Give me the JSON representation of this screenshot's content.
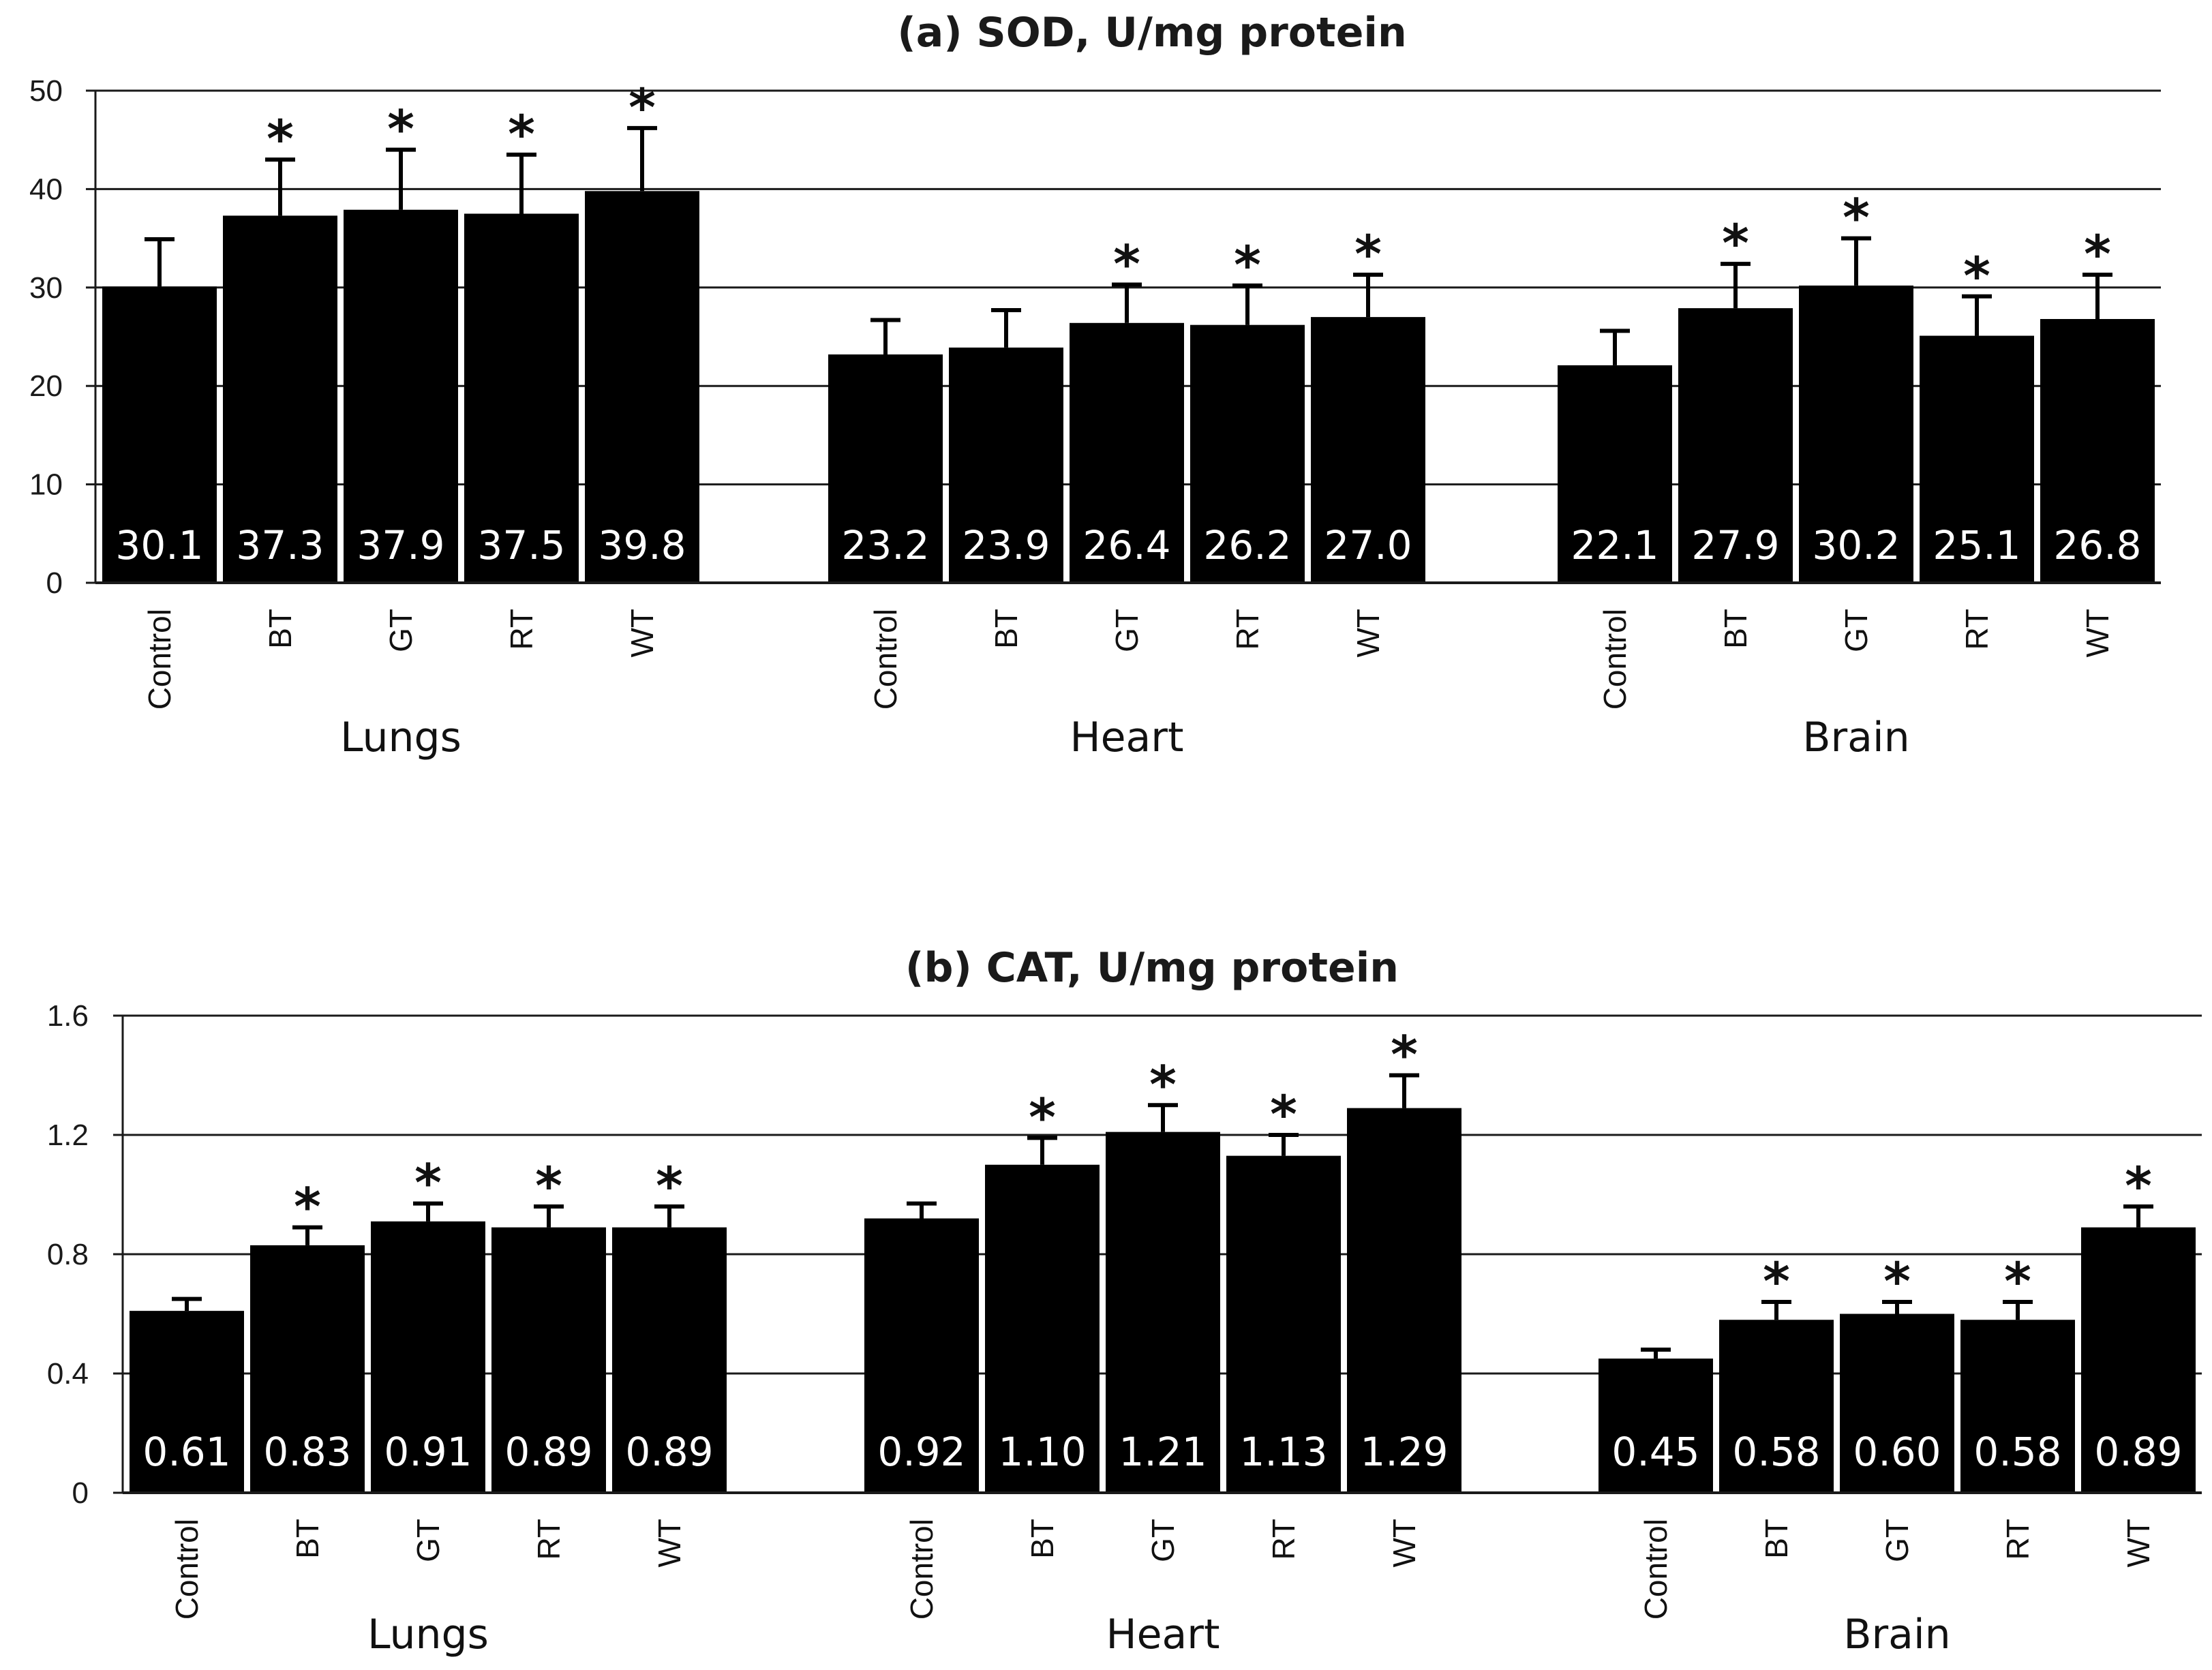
{
  "chart_data": [
    {
      "type": "bar",
      "title": "(a) SOD, U/mg protein",
      "ylim": [
        0,
        50
      ],
      "yticks": [
        "0",
        "10",
        "20",
        "30",
        "40",
        "50"
      ],
      "ytick_values": [
        0,
        10,
        20,
        30,
        40,
        50
      ],
      "grid": true,
      "groups": [
        {
          "name": "Lungs",
          "categories": [
            "Control",
            "BT",
            "GT",
            "RT",
            "WT"
          ],
          "values": [
            30.1,
            37.3,
            37.9,
            37.5,
            39.8
          ],
          "labels": [
            "30.1",
            "37.3",
            "37.9",
            "37.5",
            "39.8"
          ],
          "errors": [
            4.8,
            5.7,
            6.1,
            6.0,
            6.4
          ],
          "significant": [
            false,
            true,
            true,
            true,
            true
          ]
        },
        {
          "name": "Heart",
          "categories": [
            "Control",
            "BT",
            "GT",
            "RT",
            "WT"
          ],
          "values": [
            23.2,
            23.9,
            26.4,
            26.2,
            27.0
          ],
          "labels": [
            "23.2",
            "23.9",
            "26.4",
            "26.2",
            "27.0"
          ],
          "errors": [
            3.5,
            3.8,
            3.9,
            4.0,
            4.3
          ],
          "significant": [
            false,
            false,
            true,
            true,
            true
          ]
        },
        {
          "name": "Brain",
          "categories": [
            "Control",
            "BT",
            "GT",
            "RT",
            "WT"
          ],
          "values": [
            22.1,
            27.9,
            30.2,
            25.1,
            26.8
          ],
          "labels": [
            "22.1",
            "27.9",
            "30.2",
            "25.1",
            "26.8"
          ],
          "errors": [
            3.5,
            4.5,
            4.8,
            4.0,
            4.5
          ],
          "significant": [
            false,
            true,
            true,
            true,
            true
          ]
        }
      ]
    },
    {
      "type": "bar",
      "title": "(b) CAT, U/mg protein",
      "ylim": [
        0,
        1.6
      ],
      "yticks": [
        "0",
        "0.4",
        "0.8",
        "1.2",
        "1.6"
      ],
      "ytick_values": [
        0,
        0.4,
        0.8,
        1.2,
        1.6
      ],
      "grid": true,
      "groups": [
        {
          "name": "Lungs",
          "categories": [
            "Control",
            "BT",
            "GT",
            "RT",
            "WT"
          ],
          "values": [
            0.61,
            0.83,
            0.91,
            0.89,
            0.89
          ],
          "labels": [
            "0.61",
            "0.83",
            "0.91",
            "0.89",
            "0.89"
          ],
          "errors": [
            0.04,
            0.06,
            0.06,
            0.07,
            0.07
          ],
          "significant": [
            false,
            true,
            true,
            true,
            true
          ]
        },
        {
          "name": "Heart",
          "categories": [
            "Control",
            "BT",
            "GT",
            "RT",
            "WT"
          ],
          "values": [
            0.92,
            1.1,
            1.21,
            1.13,
            1.29
          ],
          "labels": [
            "0.92",
            "1.10",
            "1.21",
            "1.13",
            "1.29"
          ],
          "errors": [
            0.05,
            0.09,
            0.09,
            0.07,
            0.11
          ],
          "significant": [
            false,
            true,
            true,
            true,
            true
          ]
        },
        {
          "name": "Brain",
          "categories": [
            "Control",
            "BT",
            "GT",
            "RT",
            "WT"
          ],
          "values": [
            0.45,
            0.58,
            0.6,
            0.58,
            0.89
          ],
          "labels": [
            "0.45",
            "0.58",
            "0.60",
            "0.58",
            "0.89"
          ],
          "errors": [
            0.03,
            0.06,
            0.04,
            0.06,
            0.07
          ],
          "significant": [
            false,
            true,
            true,
            true,
            true
          ]
        }
      ]
    }
  ],
  "significance_marker": "*"
}
